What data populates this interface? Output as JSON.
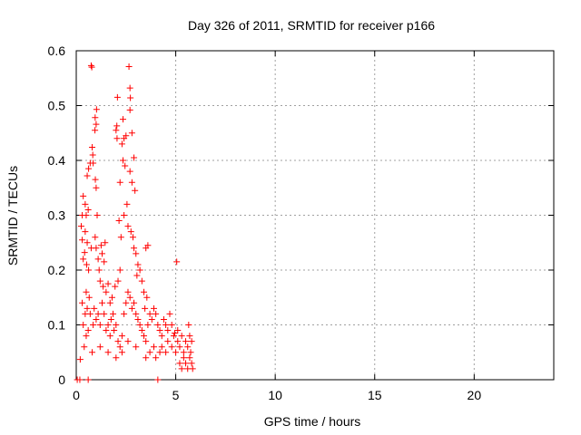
{
  "chart_data": {
    "type": "scatter",
    "title": "Day 326 of 2011, SRMTID for receiver p166",
    "xlabel": "GPS time / hours",
    "ylabel": "SRMTID / TECUs",
    "xlim": [
      0,
      24
    ],
    "ylim": [
      0,
      0.6
    ],
    "x_ticks": [
      0,
      5,
      10,
      15,
      20
    ],
    "x_tick_labels": [
      "0",
      "5",
      "10",
      "15",
      "20"
    ],
    "y_ticks": [
      0,
      0.1,
      0.2,
      0.3,
      0.4,
      0.5,
      0.6
    ],
    "y_tick_labels": [
      "0",
      "0.1",
      "0.2",
      "0.3",
      "0.4",
      "0.5",
      "0.6"
    ],
    "grid": true,
    "legend": "none",
    "marker": "plus",
    "series": [
      {
        "name": "SRMTID",
        "color": "#ff0000",
        "points": [
          [
            0.2,
            0.037
          ],
          [
            0.05,
            0.0
          ],
          [
            0.18,
            0.0
          ],
          [
            0.6,
            0.0
          ],
          [
            4.1,
            0.0
          ],
          [
            5.05,
            0.215
          ],
          [
            0.75,
            0.573
          ],
          [
            0.78,
            0.57
          ],
          [
            2.65,
            0.571
          ],
          [
            2.7,
            0.532
          ],
          [
            2.07,
            0.515
          ],
          [
            2.72,
            0.514
          ],
          [
            2.7,
            0.492
          ],
          [
            1.02,
            0.493
          ],
          [
            0.95,
            0.478
          ],
          [
            2.04,
            0.463
          ],
          [
            2.0,
            0.455
          ],
          [
            2.05,
            0.44
          ],
          [
            1.0,
            0.466
          ],
          [
            0.94,
            0.455
          ],
          [
            2.35,
            0.475
          ],
          [
            2.4,
            0.44
          ],
          [
            2.5,
            0.445
          ],
          [
            2.8,
            0.45
          ],
          [
            2.3,
            0.43
          ],
          [
            0.8,
            0.424
          ],
          [
            0.83,
            0.41
          ],
          [
            0.85,
            0.395
          ],
          [
            0.7,
            0.395
          ],
          [
            0.62,
            0.385
          ],
          [
            0.55,
            0.372
          ],
          [
            2.35,
            0.4
          ],
          [
            2.45,
            0.39
          ],
          [
            2.7,
            0.38
          ],
          [
            2.9,
            0.405
          ],
          [
            1.0,
            0.35
          ],
          [
            0.96,
            0.365
          ],
          [
            2.2,
            0.36
          ],
          [
            2.8,
            0.36
          ],
          [
            2.95,
            0.345
          ],
          [
            0.35,
            0.335
          ],
          [
            0.45,
            0.32
          ],
          [
            0.6,
            0.31
          ],
          [
            0.5,
            0.3
          ],
          [
            0.3,
            0.3
          ],
          [
            0.25,
            0.28
          ],
          [
            0.45,
            0.27
          ],
          [
            0.3,
            0.255
          ],
          [
            0.55,
            0.25
          ],
          [
            0.42,
            0.232
          ],
          [
            0.35,
            0.22
          ],
          [
            0.52,
            0.21
          ],
          [
            0.62,
            0.2
          ],
          [
            0.75,
            0.24
          ],
          [
            0.95,
            0.26
          ],
          [
            1.05,
            0.3
          ],
          [
            1.0,
            0.24
          ],
          [
            1.1,
            0.22
          ],
          [
            1.15,
            0.2
          ],
          [
            1.25,
            0.245
          ],
          [
            1.3,
            0.23
          ],
          [
            1.4,
            0.215
          ],
          [
            1.45,
            0.25
          ],
          [
            1.2,
            0.18
          ],
          [
            1.35,
            0.17
          ],
          [
            1.5,
            0.16
          ],
          [
            1.6,
            0.175
          ],
          [
            1.7,
            0.14
          ],
          [
            1.8,
            0.15
          ],
          [
            1.95,
            0.17
          ],
          [
            2.1,
            0.18
          ],
          [
            2.2,
            0.2
          ],
          [
            2.25,
            0.26
          ],
          [
            2.15,
            0.29
          ],
          [
            2.4,
            0.3
          ],
          [
            2.55,
            0.32
          ],
          [
            2.6,
            0.28
          ],
          [
            2.75,
            0.27
          ],
          [
            2.85,
            0.26
          ],
          [
            2.9,
            0.24
          ],
          [
            3.0,
            0.23
          ],
          [
            3.1,
            0.21
          ],
          [
            3.05,
            0.19
          ],
          [
            3.2,
            0.2
          ],
          [
            3.3,
            0.18
          ],
          [
            3.4,
            0.16
          ],
          [
            3.5,
            0.24
          ],
          [
            3.6,
            0.245
          ],
          [
            3.55,
            0.15
          ],
          [
            3.45,
            0.13
          ],
          [
            0.3,
            0.14
          ],
          [
            0.35,
            0.1
          ],
          [
            0.45,
            0.12
          ],
          [
            0.5,
            0.16
          ],
          [
            0.55,
            0.13
          ],
          [
            0.65,
            0.15
          ],
          [
            0.7,
            0.12
          ],
          [
            0.85,
            0.1
          ],
          [
            0.9,
            0.13
          ],
          [
            1.0,
            0.11
          ],
          [
            1.1,
            0.12
          ],
          [
            1.2,
            0.1
          ],
          [
            1.3,
            0.14
          ],
          [
            1.4,
            0.12
          ],
          [
            1.5,
            0.09
          ],
          [
            1.6,
            0.1
          ],
          [
            1.7,
            0.08
          ],
          [
            1.75,
            0.11
          ],
          [
            1.85,
            0.12
          ],
          [
            1.9,
            0.09
          ],
          [
            2.0,
            0.1
          ],
          [
            2.1,
            0.07
          ],
          [
            2.2,
            0.06
          ],
          [
            2.3,
            0.08
          ],
          [
            2.4,
            0.12
          ],
          [
            2.5,
            0.14
          ],
          [
            2.6,
            0.16
          ],
          [
            2.7,
            0.15
          ],
          [
            2.8,
            0.13
          ],
          [
            2.9,
            0.14
          ],
          [
            3.0,
            0.12
          ],
          [
            3.1,
            0.11
          ],
          [
            3.2,
            0.1
          ],
          [
            3.3,
            0.09
          ],
          [
            3.4,
            0.08
          ],
          [
            3.5,
            0.07
          ],
          [
            3.6,
            0.1
          ],
          [
            3.7,
            0.12
          ],
          [
            3.8,
            0.11
          ],
          [
            3.9,
            0.13
          ],
          [
            4.0,
            0.12
          ],
          [
            4.1,
            0.1
          ],
          [
            4.2,
            0.09
          ],
          [
            4.3,
            0.08
          ],
          [
            4.4,
            0.11
          ],
          [
            4.5,
            0.1
          ],
          [
            4.6,
            0.09
          ],
          [
            4.7,
            0.12
          ],
          [
            4.8,
            0.1
          ],
          [
            4.9,
            0.08
          ],
          [
            3.5,
            0.04
          ],
          [
            3.7,
            0.05
          ],
          [
            3.9,
            0.06
          ],
          [
            4.0,
            0.04
          ],
          [
            4.2,
            0.05
          ],
          [
            4.3,
            0.06
          ],
          [
            4.5,
            0.05
          ],
          [
            4.6,
            0.07
          ],
          [
            4.8,
            0.06
          ],
          [
            5.0,
            0.05
          ],
          [
            5.1,
            0.07
          ],
          [
            5.2,
            0.06
          ],
          [
            5.3,
            0.08
          ],
          [
            5.4,
            0.05
          ],
          [
            5.5,
            0.07
          ],
          [
            5.6,
            0.06
          ],
          [
            5.7,
            0.04
          ],
          [
            5.75,
            0.05
          ],
          [
            5.8,
            0.03
          ],
          [
            5.85,
            0.02
          ],
          [
            5.2,
            0.03
          ],
          [
            5.3,
            0.02
          ],
          [
            5.4,
            0.04
          ],
          [
            5.5,
            0.03
          ],
          [
            5.6,
            0.02
          ],
          [
            5.7,
            0.08
          ],
          [
            5.65,
            0.1
          ],
          [
            5.8,
            0.07
          ],
          [
            5.1,
            0.09
          ],
          [
            4.95,
            0.085
          ],
          [
            0.4,
            0.06
          ],
          [
            0.5,
            0.08
          ],
          [
            0.6,
            0.09
          ],
          [
            0.8,
            0.05
          ],
          [
            1.2,
            0.06
          ],
          [
            1.6,
            0.05
          ],
          [
            2.0,
            0.04
          ],
          [
            2.3,
            0.05
          ],
          [
            2.6,
            0.07
          ],
          [
            3.0,
            0.06
          ]
        ]
      }
    ]
  }
}
